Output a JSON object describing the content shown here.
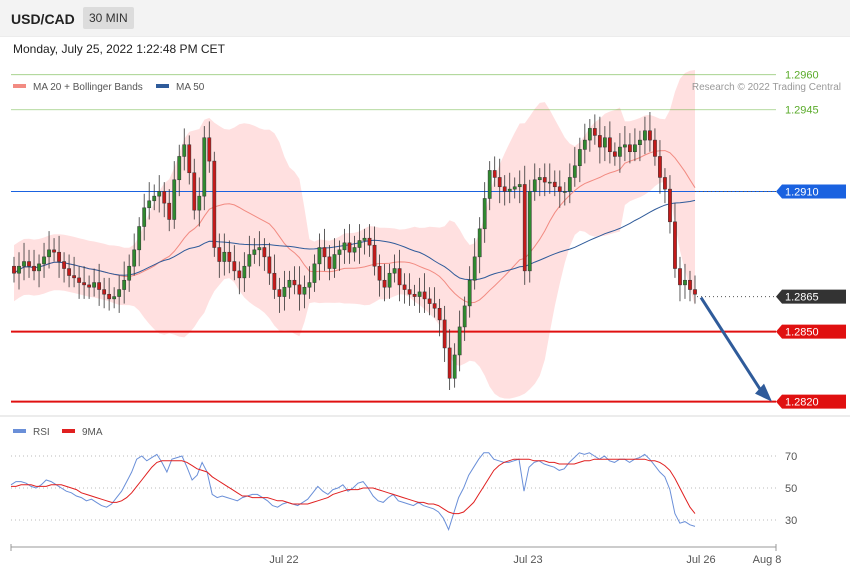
{
  "header": {
    "symbol": "USD/CAD",
    "interval": "30 MIN"
  },
  "datetime": "Monday, July 25, 2022 1:22:48 PM CET",
  "copyright": "Research © 2022 Trading Central",
  "legend_main": [
    {
      "label": "MA 20 + Bollinger Bands",
      "color": "#f28b82"
    },
    {
      "label": "MA 50",
      "color": "#2f5b9a"
    }
  ],
  "legend_rsi": [
    {
      "label": "RSI",
      "color": "#6a8fd8"
    },
    {
      "label": "9MA",
      "color": "#e02020"
    }
  ],
  "price_levels": [
    {
      "value": 1.296,
      "label": "1.2960",
      "kind": "resistance",
      "color": "#5aab2a"
    },
    {
      "value": 1.2945,
      "label": "1.2945",
      "kind": "resistance",
      "color": "#5aab2a"
    },
    {
      "value": 1.291,
      "label": "1.2910",
      "kind": "pivot",
      "color": "#1a62e0"
    },
    {
      "value": 1.2865,
      "label": "1.2865",
      "kind": "last",
      "color": "#333333"
    },
    {
      "value": 1.285,
      "label": "1.2850",
      "kind": "support",
      "color": "#e01010"
    },
    {
      "value": 1.282,
      "label": "1.2820",
      "kind": "support",
      "color": "#e01010"
    }
  ],
  "projection": {
    "from": 1.2865,
    "to": 1.282,
    "color": "#2f5b9a"
  },
  "rsi_levels": [
    {
      "value": 70,
      "label": "70"
    },
    {
      "value": 50,
      "label": "50"
    },
    {
      "value": 30,
      "label": "30"
    }
  ],
  "x_labels": [
    "Jul 22",
    "Jul 23",
    "Jul 26",
    "Aug 8"
  ],
  "chart_data": {
    "type": "candlestick",
    "close_series": [
      1.2875,
      1.2878,
      1.288,
      1.2878,
      1.2876,
      1.2879,
      1.2882,
      1.2885,
      1.2884,
      1.288,
      1.2877,
      1.2874,
      1.2873,
      1.2871,
      1.287,
      1.2869,
      1.2871,
      1.2868,
      1.2866,
      1.2864,
      1.2865,
      1.2868,
      1.2872,
      1.2878,
      1.2885,
      1.2895,
      1.2903,
      1.2906,
      1.2908,
      1.291,
      1.2905,
      1.2898,
      1.2915,
      1.2925,
      1.293,
      1.2918,
      1.2902,
      1.2908,
      1.2933,
      1.2923,
      1.2886,
      1.288,
      1.2884,
      1.288,
      1.2876,
      1.2873,
      1.2878,
      1.2883,
      1.2885,
      1.2886,
      1.2882,
      1.2875,
      1.2868,
      1.2865,
      1.2869,
      1.2872,
      1.287,
      1.2866,
      1.2869,
      1.2871,
      1.2879,
      1.2886,
      1.2882,
      1.2877,
      1.2883,
      1.2885,
      1.2888,
      1.2884,
      1.2886,
      1.2889,
      1.289,
      1.2887,
      1.2878,
      1.2872,
      1.2869,
      1.2875,
      1.2877,
      1.287,
      1.2868,
      1.2866,
      1.2865,
      1.2867,
      1.2864,
      1.2862,
      1.286,
      1.2855,
      1.2843,
      1.283,
      1.284,
      1.2852,
      1.2861,
      1.2872,
      1.2882,
      1.2894,
      1.2907,
      1.2919,
      1.2916,
      1.2912,
      1.291,
      1.2911,
      1.2912,
      1.2913,
      1.2876,
      1.291,
      1.2915,
      1.2916,
      1.2914,
      1.2914,
      1.2912,
      1.291,
      1.291,
      1.2916,
      1.2921,
      1.2928,
      1.2932,
      1.2937,
      1.2934,
      1.2929,
      1.2933,
      1.2927,
      1.2925,
      1.2929,
      1.293,
      1.2927,
      1.293,
      1.2932,
      1.2936,
      1.2932,
      1.2925,
      1.2916,
      1.2911,
      1.2897,
      1.2877,
      1.287,
      1.2872,
      1.2868,
      1.2866
    ],
    "support": [
      1.285,
      1.282
    ],
    "resistance": [
      1.2945,
      1.296
    ],
    "pivot": 1.291,
    "last": 1.2865,
    "y_range": [
      1.2819,
      1.2968
    ],
    "rsi": {
      "levels": [
        70,
        50,
        30
      ],
      "range": [
        20,
        80
      ],
      "rsi_series": [
        52,
        54,
        54,
        53,
        51,
        50,
        52,
        55,
        54,
        52,
        50,
        48,
        47,
        45,
        44,
        42,
        43,
        41,
        39,
        38,
        40,
        44,
        48,
        54,
        60,
        68,
        70,
        67,
        69,
        71,
        66,
        60,
        68,
        69,
        70,
        63,
        55,
        58,
        66,
        60,
        46,
        44,
        45,
        44,
        43,
        42,
        44,
        45,
        46,
        46,
        44,
        42,
        39,
        38,
        40,
        41,
        40,
        39,
        41,
        43,
        47,
        51,
        48,
        46,
        49,
        50,
        52,
        48,
        50,
        53,
        54,
        50,
        45,
        42,
        41,
        44,
        46,
        42,
        41,
        40,
        39,
        41,
        39,
        38,
        37,
        35,
        31,
        24,
        34,
        44,
        50,
        58,
        63,
        68,
        72,
        72,
        68,
        67,
        66,
        66,
        67,
        68,
        48,
        63,
        66,
        67,
        65,
        64,
        63,
        61,
        62,
        66,
        69,
        72,
        71,
        72,
        70,
        68,
        70,
        67,
        66,
        68,
        68,
        66,
        68,
        69,
        71,
        68,
        64,
        60,
        57,
        49,
        34,
        28,
        29,
        27,
        26
      ],
      "ma_series": [
        51,
        51,
        52,
        52,
        52,
        51,
        51,
        51,
        52,
        52,
        52,
        51,
        50,
        49,
        47,
        46,
        45,
        44,
        43,
        42,
        41,
        41,
        42,
        44,
        47,
        51,
        55,
        59,
        63,
        66,
        67,
        67,
        67,
        67,
        67,
        66,
        64,
        62,
        61,
        60,
        57,
        55,
        53,
        51,
        49,
        47,
        45,
        45,
        44,
        44,
        44,
        44,
        43,
        42,
        42,
        41,
        40,
        40,
        40,
        40,
        41,
        42,
        43,
        44,
        46,
        47,
        48,
        49,
        49,
        49,
        50,
        50,
        50,
        49,
        48,
        47,
        46,
        45,
        44,
        43,
        42,
        41,
        41,
        40,
        40,
        39,
        37,
        35,
        34,
        34,
        35,
        38,
        41,
        46,
        51,
        56,
        61,
        64,
        66,
        67,
        68,
        68,
        68,
        68,
        67,
        67,
        67,
        66,
        66,
        65,
        65,
        65,
        65,
        66,
        67,
        67,
        68,
        68,
        68,
        68,
        68,
        68,
        68,
        68,
        68,
        68,
        68,
        67,
        67,
        66,
        64,
        61,
        56,
        50,
        44,
        38,
        34
      ]
    }
  }
}
